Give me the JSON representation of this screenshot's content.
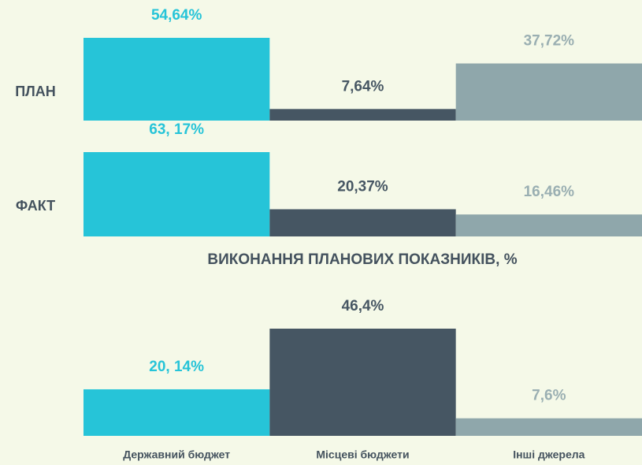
{
  "chart_data": [
    {
      "type": "bar",
      "label": "ПЛАН",
      "values": [
        54.64,
        7.64,
        37.72
      ],
      "value_labels": [
        "54,64%",
        "7,64%",
        "37,72%"
      ],
      "colors": [
        "#26c4d8",
        "#465663",
        "#8fa7ab"
      ]
    },
    {
      "type": "bar",
      "label": "ФАКТ",
      "values": [
        63.17,
        20.37,
        16.46
      ],
      "value_labels": [
        "63, 17%",
        "20,37%",
        "16,46%"
      ],
      "colors": [
        "#26c4d8",
        "#465663",
        "#8fa7ab"
      ]
    },
    {
      "type": "bar",
      "title": "ВИКОНАННЯ ПЛАНОВИХ ПОКАЗНИКІВ, %",
      "categories": [
        "Державний бюджет",
        "Місцеві бюджети",
        "Інші джерела"
      ],
      "values": [
        20.14,
        46.4,
        7.6
      ],
      "value_labels": [
        "20, 14%",
        "46,4%",
        "7,6%"
      ],
      "colors": [
        "#26c4d8",
        "#465663",
        "#8fa7ab"
      ]
    }
  ]
}
